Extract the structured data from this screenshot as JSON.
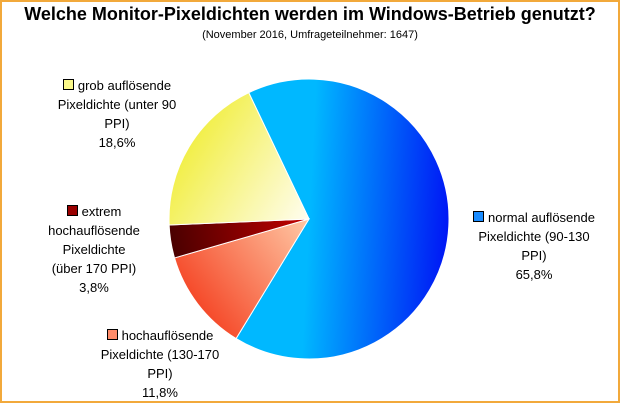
{
  "chart_data": {
    "type": "pie",
    "title": "Welche Monitor-Pixeldichten werden im Windows-Betrieb genutzt?",
    "subtitle": "(November 2016, Umfrageteilnehmer: 1647)",
    "slices": [
      {
        "label_lines": [
          "normal auflösende",
          "Pixeldichte (90-130",
          "PPI)"
        ],
        "value": 65.8,
        "value_label": "65,8%",
        "colors": [
          "#0016f5",
          "#00b8ff"
        ]
      },
      {
        "label_lines": [
          "hochauflösende",
          "Pixeldichte (130-170",
          "PPI)"
        ],
        "value": 11.8,
        "value_label": "11,8%",
        "colors": [
          "#f54a2a",
          "#ffc9a6"
        ]
      },
      {
        "label_lines": [
          "extrem",
          "hochauflösende",
          "Pixeldichte",
          "(über 170 PPI)"
        ],
        "value": 3.8,
        "value_label": "3,8%",
        "colors": [
          "#4a0000",
          "#c40000"
        ]
      },
      {
        "label_lines": [
          "grob auflösende",
          "Pixeldichte (unter 90",
          "PPI)"
        ],
        "value": 18.6,
        "value_label": "18,6%",
        "colors": [
          "#f2ef4a",
          "#fffdf0"
        ]
      }
    ]
  }
}
